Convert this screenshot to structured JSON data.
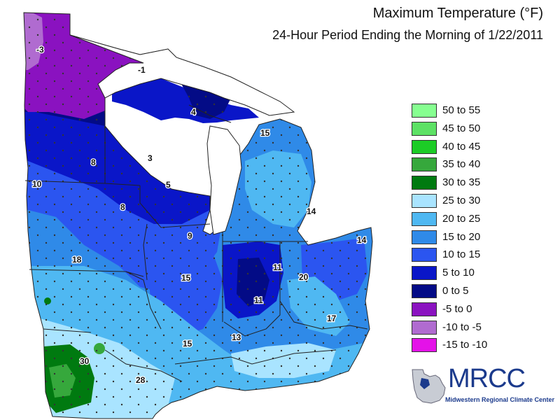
{
  "title": "Maximum Temperature (°F)",
  "subtitle": "24-Hour Period Ending the Morning of 1/22/2011",
  "legend": [
    {
      "label": "50 to 55",
      "color": "#86ff90"
    },
    {
      "label": "45 to 50",
      "color": "#5de165"
    },
    {
      "label": "40 to 45",
      "color": "#1ccc26"
    },
    {
      "label": "35 to 40",
      "color": "#36a83c"
    },
    {
      "label": "30 to 35",
      "color": "#007a10"
    },
    {
      "label": "25 to 30",
      "color": "#a9e4ff"
    },
    {
      "label": "20 to 25",
      "color": "#4fb8f2"
    },
    {
      "label": "15 to 20",
      "color": "#2f8ae8"
    },
    {
      "label": "10 to 15",
      "color": "#2b55f0"
    },
    {
      "label": "5 to 10",
      "color": "#0a16c8"
    },
    {
      "label": "0 to 5",
      "color": "#030b86"
    },
    {
      "label": "-5 to 0",
      "color": "#8a12c0"
    },
    {
      "label": "-10 to -5",
      "color": "#b06bd0"
    },
    {
      "label": "-15 to -10",
      "color": "#e412e8"
    }
  ],
  "map_labels": [
    {
      "text": "-3"
    },
    {
      "text": "-1"
    },
    {
      "text": "4"
    },
    {
      "text": "15"
    },
    {
      "text": "3"
    },
    {
      "text": "8"
    },
    {
      "text": "10"
    },
    {
      "text": "5"
    },
    {
      "text": "8"
    },
    {
      "text": "9"
    },
    {
      "text": "14"
    },
    {
      "text": "14"
    },
    {
      "text": "18"
    },
    {
      "text": "11"
    },
    {
      "text": "20"
    },
    {
      "text": "15"
    },
    {
      "text": "11"
    },
    {
      "text": "17"
    },
    {
      "text": "13"
    },
    {
      "text": "15"
    },
    {
      "text": "30"
    },
    {
      "text": "28"
    }
  ],
  "logo": {
    "name": "MRCC",
    "subtitle": "Midwestern Regional Climate Center"
  }
}
